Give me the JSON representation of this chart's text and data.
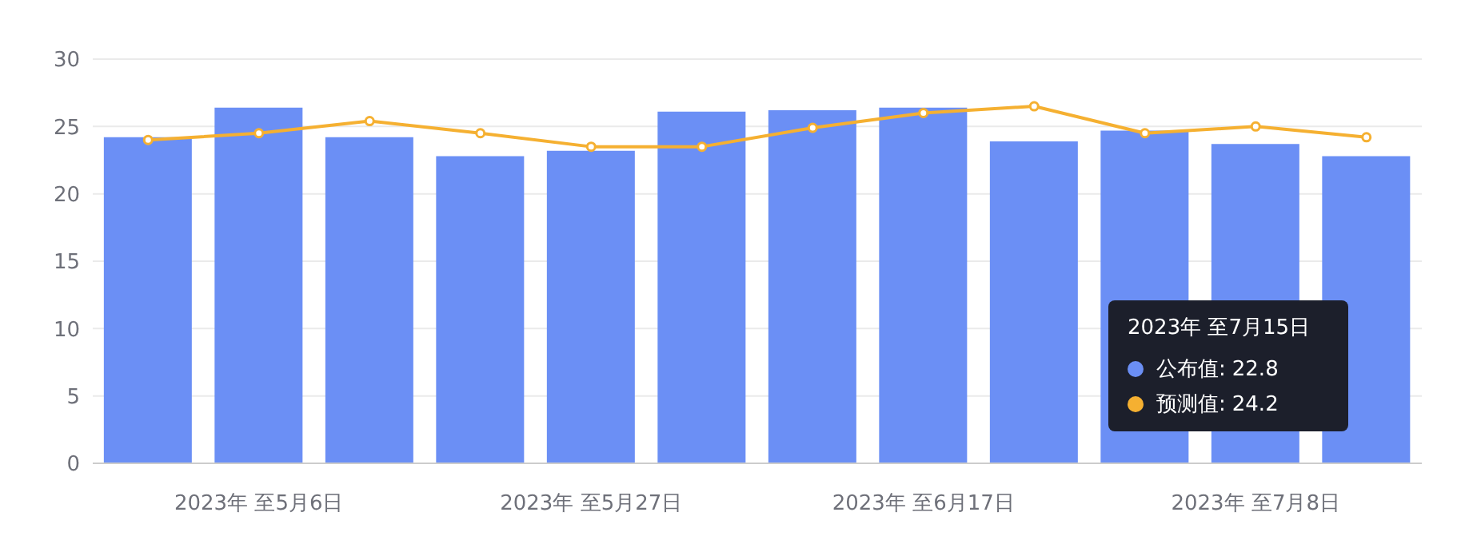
{
  "chart_data": {
    "type": "bar",
    "categories": [
      null,
      "2023年 至5月6日",
      null,
      null,
      "2023年 至5月27日",
      null,
      null,
      "2023年 至6月17日",
      null,
      null,
      "2023年 至7月8日",
      null
    ],
    "series": [
      {
        "name": "公布值:",
        "color": "#6b8ff5",
        "values": [
          24.2,
          26.4,
          24.2,
          22.8,
          23.2,
          26.1,
          26.2,
          26.4,
          23.9,
          24.7,
          23.7,
          22.8
        ]
      },
      {
        "name": "预测值:",
        "type": "line",
        "color": "#f5b031",
        "values": [
          24.0,
          24.5,
          25.4,
          24.5,
          23.5,
          23.5,
          24.9,
          26.0,
          26.5,
          24.5,
          25.0,
          24.2
        ]
      }
    ],
    "ylim": [
      0,
      30
    ],
    "yticks": [
      0,
      5,
      10,
      15,
      20,
      25,
      30
    ],
    "grid": "y",
    "legend": "bottom right",
    "marker": "circle",
    "annotations": [
      "2023年 至7月15日",
      "22.8",
      "24.2"
    ]
  }
}
